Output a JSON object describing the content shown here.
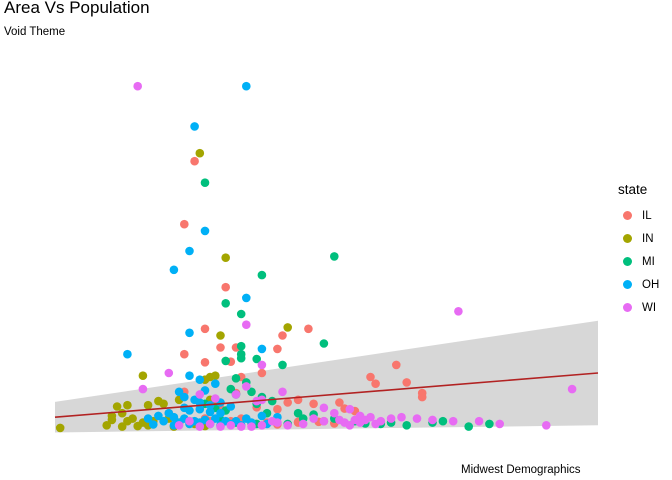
{
  "chart_data": {
    "type": "scatter",
    "title": "Area Vs Population",
    "subtitle": "Void Theme",
    "caption": "Midwest Demographics",
    "xlabel": "",
    "ylabel": "",
    "legend": {
      "title": "state",
      "placement": "right",
      "entries": [
        {
          "label": "IL",
          "color": "#F8766D"
        },
        {
          "label": "IN",
          "color": "#A3A500"
        },
        {
          "label": "MI",
          "color": "#00BF7D"
        },
        {
          "label": "OH",
          "color": "#00B0F6"
        },
        {
          "label": "WI",
          "color": "#E76BF3"
        }
      ]
    },
    "grid": false,
    "axes_visible": false,
    "xlim": [
      0.005,
      0.11
    ],
    "ylim": [
      -40000,
      1400000
    ],
    "smooth": {
      "method": "lm",
      "line_color": "#B22222",
      "band_color": "#D3D3D3",
      "x": [
        0.005,
        0.11
      ],
      "y": [
        45000,
        210000
      ],
      "ci_lower": [
        -12000,
        15000
      ],
      "ci_upper": [
        102000,
        405000
      ]
    },
    "series": [
      {
        "name": "IL",
        "color": "#F8766D",
        "points": [
          [
            0.032,
            1000000
          ],
          [
            0.03,
            765000
          ],
          [
            0.038,
            530000
          ],
          [
            0.034,
            375000
          ],
          [
            0.03,
            280000
          ],
          [
            0.049,
            350000
          ],
          [
            0.054,
            375000
          ],
          [
            0.048,
            300000
          ],
          [
            0.037,
            305000
          ],
          [
            0.04,
            305000
          ],
          [
            0.039,
            252000
          ],
          [
            0.034,
            250000
          ],
          [
            0.041,
            195000
          ],
          [
            0.045,
            210000
          ],
          [
            0.071,
            240000
          ],
          [
            0.066,
            195000
          ],
          [
            0.073,
            175000
          ],
          [
            0.067,
            170000
          ],
          [
            0.03,
            140000
          ],
          [
            0.04,
            135000
          ],
          [
            0.052,
            110000
          ],
          [
            0.05,
            100000
          ],
          [
            0.055,
            95000
          ],
          [
            0.044,
            82000
          ],
          [
            0.048,
            75000
          ],
          [
            0.061,
            77000
          ],
          [
            0.063,
            68000
          ],
          [
            0.076,
            135000
          ],
          [
            0.076,
            120000
          ],
          [
            0.06,
            100000
          ],
          [
            0.057,
            30000
          ],
          [
            0.027,
            60000
          ],
          [
            0.034,
            40000
          ],
          [
            0.041,
            40000
          ],
          [
            0.046,
            25000
          ],
          [
            0.052,
            25000
          ],
          [
            0.056,
            28000
          ],
          [
            0.059,
            22000
          ],
          [
            0.035,
            30000
          ],
          [
            0.039,
            30000
          ],
          [
            0.043,
            20000
          ],
          [
            0.048,
            18000
          ],
          [
            0.052,
            28000
          ],
          [
            0.037,
            78000
          ]
        ]
      },
      {
        "name": "IN",
        "color": "#A3A500",
        "points": [
          [
            0.033,
            1030000
          ],
          [
            0.038,
            640000
          ],
          [
            0.05,
            380000
          ],
          [
            0.037,
            350000
          ],
          [
            0.022,
            200000
          ],
          [
            0.035,
            195000
          ],
          [
            0.034,
            185000
          ],
          [
            0.036,
            200000
          ],
          [
            0.036,
            98000
          ],
          [
            0.035,
            110000
          ],
          [
            0.029,
            110000
          ],
          [
            0.023,
            90000
          ],
          [
            0.026,
            95000
          ],
          [
            0.025,
            105000
          ],
          [
            0.017,
            85000
          ],
          [
            0.019,
            90000
          ],
          [
            0.016,
            50000
          ],
          [
            0.02,
            40000
          ],
          [
            0.019,
            30000
          ],
          [
            0.022,
            25000
          ],
          [
            0.024,
            30000
          ],
          [
            0.027,
            40000
          ],
          [
            0.029,
            25000
          ],
          [
            0.031,
            30000
          ],
          [
            0.018,
            60000
          ],
          [
            0.016,
            35000
          ],
          [
            0.006,
            5000
          ],
          [
            0.015,
            15000
          ],
          [
            0.018,
            10000
          ],
          [
            0.021,
            12000
          ],
          [
            0.023,
            15000
          ],
          [
            0.028,
            10000
          ],
          [
            0.032,
            20000
          ],
          [
            0.034,
            12000
          ]
        ]
      },
      {
        "name": "MI",
        "color": "#00BF7D",
        "points": [
          [
            0.034,
            920000
          ],
          [
            0.059,
            645000
          ],
          [
            0.045,
            575000
          ],
          [
            0.038,
            470000
          ],
          [
            0.041,
            430000
          ],
          [
            0.057,
            320000
          ],
          [
            0.041,
            310000
          ],
          [
            0.041,
            280000
          ],
          [
            0.038,
            255000
          ],
          [
            0.041,
            265000
          ],
          [
            0.044,
            262000
          ],
          [
            0.049,
            240000
          ],
          [
            0.04,
            190000
          ],
          [
            0.042,
            175000
          ],
          [
            0.039,
            150000
          ],
          [
            0.04,
            130000
          ],
          [
            0.043,
            140000
          ],
          [
            0.045,
            120000
          ],
          [
            0.047,
            105000
          ],
          [
            0.044,
            95000
          ],
          [
            0.034,
            95000
          ],
          [
            0.036,
            80000
          ],
          [
            0.038,
            70000
          ],
          [
            0.046,
            60000
          ],
          [
            0.052,
            60000
          ],
          [
            0.053,
            40000
          ],
          [
            0.055,
            55000
          ],
          [
            0.059,
            40000
          ],
          [
            0.063,
            30000
          ],
          [
            0.065,
            22000
          ],
          [
            0.068,
            20000
          ],
          [
            0.07,
            25000
          ],
          [
            0.073,
            15000
          ],
          [
            0.078,
            25000
          ],
          [
            0.08,
            30000
          ],
          [
            0.085,
            10000
          ],
          [
            0.089,
            20000
          ],
          [
            0.04,
            25000
          ],
          [
            0.044,
            20000
          ],
          [
            0.05,
            20000
          ],
          [
            0.033,
            15000
          ],
          [
            0.037,
            35000
          ]
        ]
      },
      {
        "name": "OH",
        "color": "#00B0F6",
        "points": [
          [
            0.042,
            1280000
          ],
          [
            0.032,
            1130000
          ],
          [
            0.034,
            740000
          ],
          [
            0.031,
            665000
          ],
          [
            0.028,
            595000
          ],
          [
            0.042,
            490000
          ],
          [
            0.031,
            360000
          ],
          [
            0.045,
            300000
          ],
          [
            0.019,
            280000
          ],
          [
            0.031,
            200000
          ],
          [
            0.033,
            185000
          ],
          [
            0.036,
            170000
          ],
          [
            0.034,
            145000
          ],
          [
            0.029,
            140000
          ],
          [
            0.03,
            120000
          ],
          [
            0.032,
            110000
          ],
          [
            0.033,
            100000
          ],
          [
            0.035,
            90000
          ],
          [
            0.037,
            100000
          ],
          [
            0.039,
            85000
          ],
          [
            0.03,
            80000
          ],
          [
            0.031,
            70000
          ],
          [
            0.033,
            75000
          ],
          [
            0.035,
            65000
          ],
          [
            0.037,
            60000
          ],
          [
            0.027,
            60000
          ],
          [
            0.028,
            45000
          ],
          [
            0.03,
            40000
          ],
          [
            0.032,
            30000
          ],
          [
            0.034,
            35000
          ],
          [
            0.036,
            40000
          ],
          [
            0.038,
            30000
          ],
          [
            0.04,
            30000
          ],
          [
            0.042,
            40000
          ],
          [
            0.045,
            50000
          ],
          [
            0.048,
            45000
          ],
          [
            0.023,
            40000
          ],
          [
            0.025,
            50000
          ],
          [
            0.026,
            30000
          ],
          [
            0.029,
            25000
          ],
          [
            0.031,
            20000
          ],
          [
            0.033,
            25000
          ],
          [
            0.035,
            20000
          ],
          [
            0.037,
            15000
          ],
          [
            0.039,
            20000
          ],
          [
            0.041,
            15000
          ],
          [
            0.043,
            25000
          ],
          [
            0.046,
            20000
          ],
          [
            0.024,
            18000
          ],
          [
            0.028,
            15000
          ]
        ]
      },
      {
        "name": "WI",
        "color": "#E76BF3",
        "points": [
          [
            0.021,
            1280000
          ],
          [
            0.083,
            440000
          ],
          [
            0.042,
            390000
          ],
          [
            0.045,
            240000
          ],
          [
            0.027,
            210000
          ],
          [
            0.042,
            160000
          ],
          [
            0.049,
            140000
          ],
          [
            0.033,
            130000
          ],
          [
            0.04,
            130000
          ],
          [
            0.045,
            110000
          ],
          [
            0.022,
            150000
          ],
          [
            0.036,
            115000
          ],
          [
            0.044,
            105000
          ],
          [
            0.105,
            150000
          ],
          [
            0.057,
            80000
          ],
          [
            0.059,
            60000
          ],
          [
            0.062,
            75000
          ],
          [
            0.064,
            50000
          ],
          [
            0.066,
            45000
          ],
          [
            0.068,
            30000
          ],
          [
            0.07,
            40000
          ],
          [
            0.072,
            45000
          ],
          [
            0.075,
            40000
          ],
          [
            0.078,
            35000
          ],
          [
            0.082,
            30000
          ],
          [
            0.087,
            30000
          ],
          [
            0.091,
            20000
          ],
          [
            0.1,
            15000
          ],
          [
            0.055,
            40000
          ],
          [
            0.057,
            30000
          ],
          [
            0.06,
            35000
          ],
          [
            0.061,
            25000
          ],
          [
            0.062,
            15000
          ],
          [
            0.063,
            35000
          ],
          [
            0.064,
            25000
          ],
          [
            0.065,
            35000
          ],
          [
            0.067,
            20000
          ],
          [
            0.048,
            25000
          ],
          [
            0.05,
            15000
          ],
          [
            0.053,
            20000
          ],
          [
            0.029,
            15000
          ],
          [
            0.031,
            30000
          ],
          [
            0.033,
            10000
          ],
          [
            0.035,
            20000
          ],
          [
            0.037,
            10000
          ],
          [
            0.039,
            15000
          ],
          [
            0.041,
            10000
          ],
          [
            0.043,
            10000
          ],
          [
            0.045,
            15000
          ],
          [
            0.047,
            30000
          ]
        ]
      }
    ]
  }
}
